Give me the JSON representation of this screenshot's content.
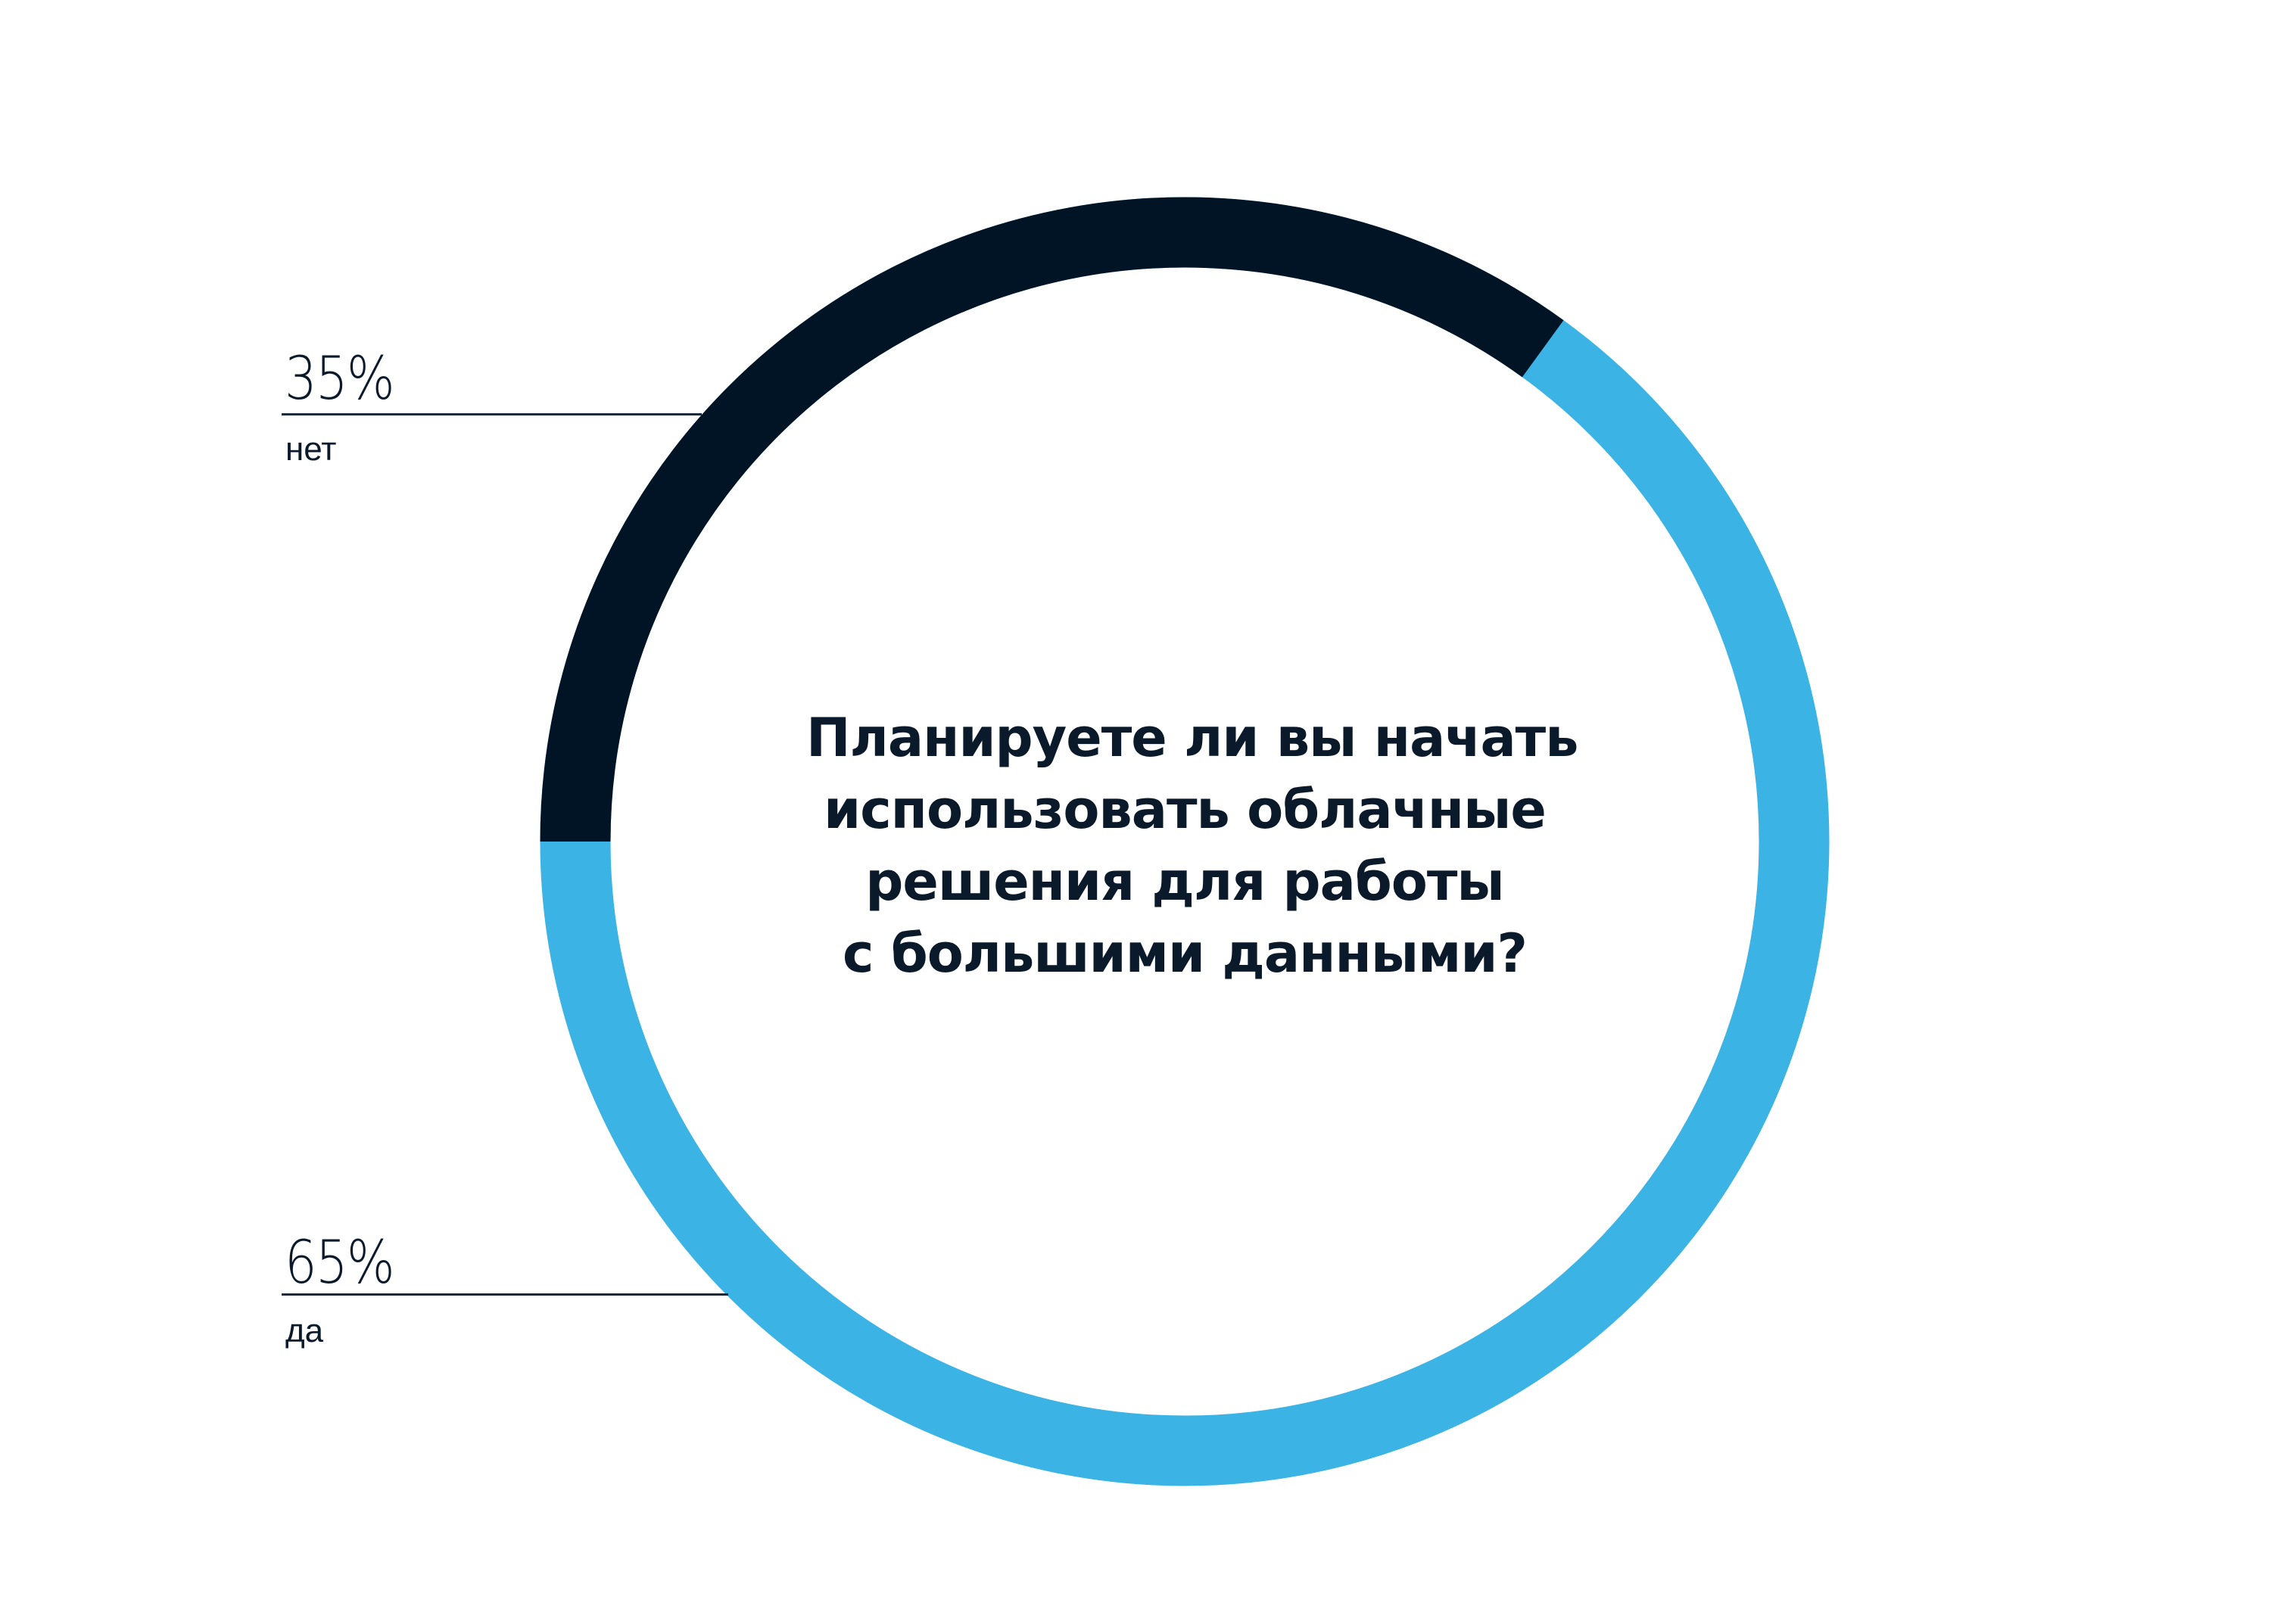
{
  "chart_data": {
    "type": "pie",
    "variant": "donut",
    "title": "Планируете ли вы начать использовать облачные решения для работы с большими данными?",
    "categories": [
      "нет",
      "да"
    ],
    "values": [
      35,
      65
    ],
    "unit": "%",
    "colors": [
      "#011425",
      "#3BB4E5"
    ],
    "legend_position": "left",
    "start_angle_deg": 270,
    "direction": "clockwise"
  },
  "question": {
    "lines": [
      "Планируете ли вы начать",
      "использовать облачные",
      "решения для работы",
      "с большими данными?"
    ]
  },
  "legend": {
    "no": {
      "percent": "35%",
      "label": "нет",
      "color": "#011425"
    },
    "yes": {
      "percent": "65%",
      "label": "да",
      "color": "#3BB4E5"
    }
  }
}
